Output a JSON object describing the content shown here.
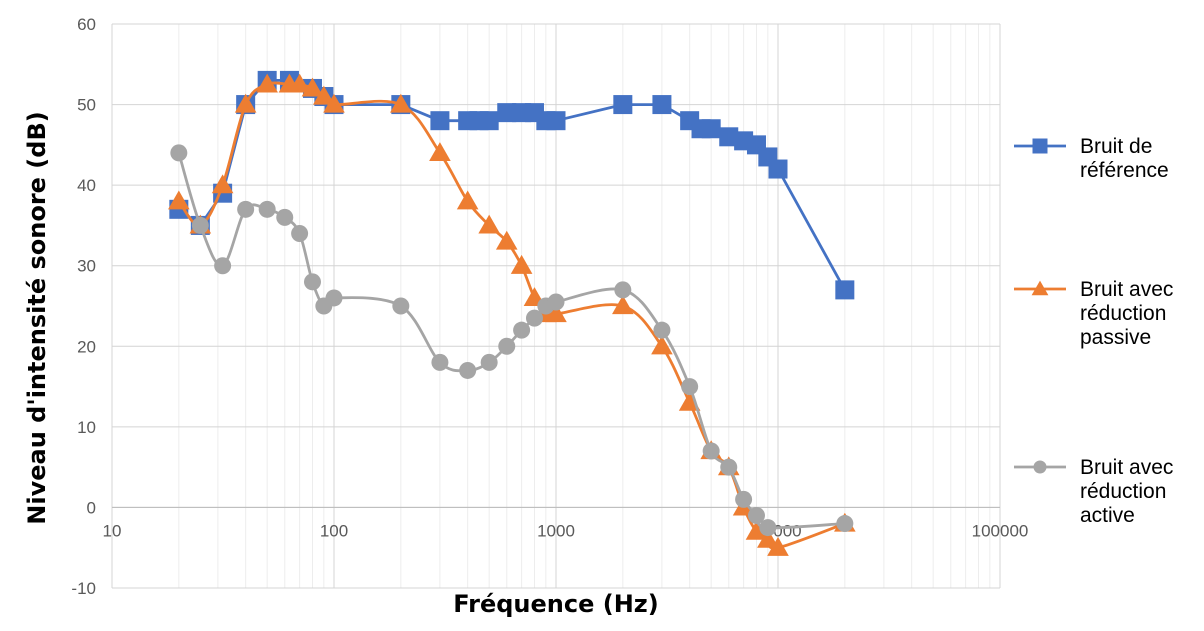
{
  "chart_data": {
    "type": "line",
    "title": "",
    "xlabel": "Fréquence (Hz)",
    "ylabel": "Niveau d'intensité sonore (dB)",
    "x_scale": "log",
    "xlim": [
      10,
      100000
    ],
    "ylim": [
      -10,
      60
    ],
    "x_ticks": [
      "10",
      "100",
      "1000",
      "10000",
      "100000"
    ],
    "y_ticks": [
      "-10",
      "0",
      "10",
      "20",
      "30",
      "40",
      "50",
      "60"
    ],
    "grid": true,
    "legend_position": "right",
    "series": [
      {
        "name": [
          "Bruit de",
          "référence"
        ],
        "color": "#4472C4",
        "marker": "square",
        "x": [
          20,
          25,
          31.5,
          40,
          50,
          63,
          80,
          90,
          100,
          200,
          300,
          400,
          450,
          500,
          600,
          700,
          800,
          900,
          1000,
          2000,
          3000,
          4000,
          4500,
          5000,
          6000,
          7000,
          8000,
          9000,
          10000,
          20000
        ],
        "y": [
          37,
          35,
          39,
          50,
          53,
          53,
          52,
          51,
          50,
          50,
          48,
          48,
          48,
          48,
          49,
          49,
          49,
          48,
          48,
          50,
          50,
          48,
          47,
          47,
          46,
          45.5,
          45,
          43.5,
          42,
          27
        ]
      },
      {
        "name": [
          "Bruit avec",
          "réduction",
          "passive"
        ],
        "color": "#ED7D31",
        "marker": "triangle",
        "x": [
          20,
          25,
          31.5,
          40,
          50,
          63,
          70,
          80,
          90,
          100,
          200,
          300,
          400,
          500,
          600,
          700,
          800,
          900,
          1000,
          2000,
          3000,
          4000,
          5000,
          6000,
          7000,
          8000,
          9000,
          10000,
          20000
        ],
        "y": [
          38,
          35,
          40,
          50,
          52.5,
          52.5,
          52.5,
          52,
          51,
          50,
          50,
          44,
          38,
          35,
          33,
          30,
          26,
          24,
          24,
          25,
          20,
          13,
          7,
          5,
          0,
          -3,
          -4,
          -5,
          -2
        ]
      },
      {
        "name": [
          "Bruit avec",
          "réduction",
          "active"
        ],
        "color": "#A5A5A5",
        "marker": "circle",
        "x": [
          20,
          25,
          31.5,
          40,
          50,
          60,
          70,
          80,
          90,
          100,
          200,
          300,
          400,
          500,
          600,
          700,
          800,
          900,
          1000,
          2000,
          3000,
          4000,
          5000,
          6000,
          7000,
          8000,
          9000,
          20000
        ],
        "y": [
          44,
          35,
          30,
          37,
          37,
          36,
          34,
          28,
          25,
          26,
          25,
          18,
          17,
          18,
          20,
          22,
          23.5,
          25,
          25.5,
          27,
          22,
          15,
          7,
          5,
          1,
          -1,
          -2.5,
          -2
        ]
      }
    ]
  }
}
